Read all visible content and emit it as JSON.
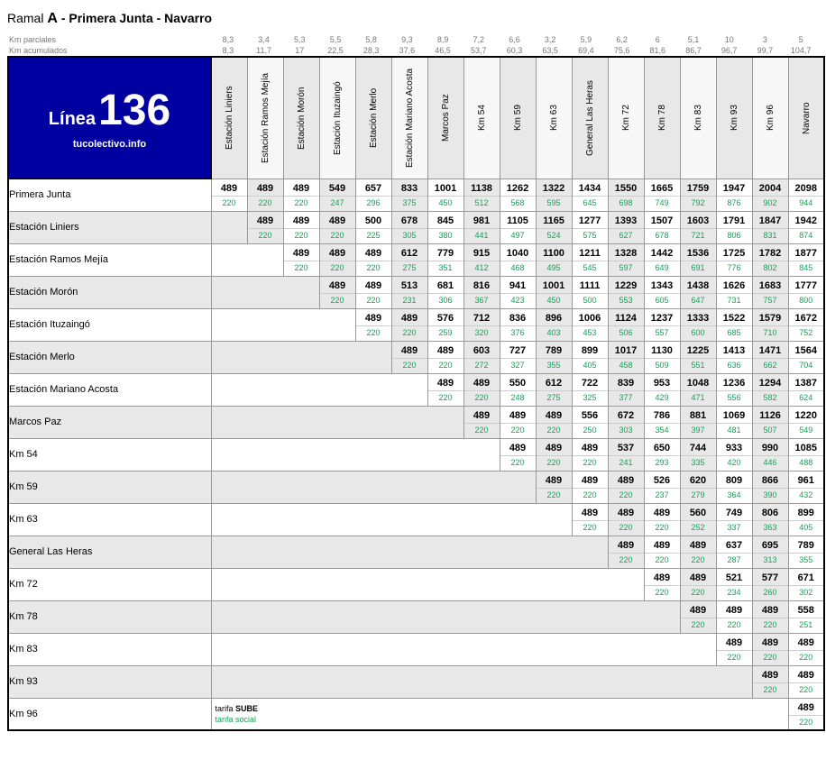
{
  "title": {
    "ramal": "Ramal",
    "letter": "A",
    "route": "- Primera Junta - Navarro"
  },
  "km_labels": {
    "parciales": "Km parciales",
    "acumulados": "Km acumulados"
  },
  "km_parciales": [
    "8,3",
    "3,4",
    "5,3",
    "5,5",
    "5,8",
    "9,3",
    "8,9",
    "7,2",
    "6,6",
    "3,2",
    "5,9",
    "6,2",
    "6",
    "5,1",
    "10",
    "3",
    "5"
  ],
  "km_acumulados": [
    "8,3",
    "11,7",
    "17",
    "22,5",
    "28,3",
    "37,6",
    "46,5",
    "53,7",
    "60,3",
    "63,5",
    "69,4",
    "75,6",
    "81,6",
    "86,7",
    "96,7",
    "99,7",
    "104,7"
  ],
  "linea": {
    "label": "Línea",
    "number": "136",
    "url": "tucolectivo.info"
  },
  "columns": [
    "Estación Liniers",
    "Estación Ramos Mejía",
    "Estación Morón",
    "Estación Ituzaingó",
    "Estación Merlo",
    "Estación Mariano Acosta",
    "Marcos Paz",
    "Km 54",
    "Km 59",
    "Km 63",
    "General Las Heras",
    "Km 72",
    "Km 78",
    "Km 83",
    "Km 93",
    "Km 96",
    "Navarro"
  ],
  "rows": [
    {
      "name": "Primera Junta",
      "start": 0,
      "sube": [
        "489",
        "489",
        "489",
        "549",
        "657",
        "833",
        "1001",
        "1138",
        "1262",
        "1322",
        "1434",
        "1550",
        "1665",
        "1759",
        "1947",
        "2004",
        "2098"
      ],
      "soc": [
        "220",
        "220",
        "220",
        "247",
        "296",
        "375",
        "450",
        "512",
        "568",
        "595",
        "645",
        "698",
        "749",
        "792",
        "876",
        "902",
        "944"
      ]
    },
    {
      "name": "Estación Liniers",
      "start": 1,
      "sube": [
        "489",
        "489",
        "489",
        "500",
        "678",
        "845",
        "981",
        "1105",
        "1165",
        "1277",
        "1393",
        "1507",
        "1603",
        "1791",
        "1847",
        "1942"
      ],
      "soc": [
        "220",
        "220",
        "220",
        "225",
        "305",
        "380",
        "441",
        "497",
        "524",
        "575",
        "627",
        "678",
        "721",
        "806",
        "831",
        "874"
      ]
    },
    {
      "name": "Estación Ramos Mejía",
      "start": 2,
      "sube": [
        "489",
        "489",
        "489",
        "612",
        "779",
        "915",
        "1040",
        "1100",
        "1211",
        "1328",
        "1442",
        "1536",
        "1725",
        "1782",
        "1877"
      ],
      "soc": [
        "220",
        "220",
        "220",
        "275",
        "351",
        "412",
        "468",
        "495",
        "545",
        "597",
        "649",
        "691",
        "776",
        "802",
        "845"
      ]
    },
    {
      "name": "Estación Morón",
      "start": 3,
      "sube": [
        "489",
        "489",
        "513",
        "681",
        "816",
        "941",
        "1001",
        "1111",
        "1229",
        "1343",
        "1438",
        "1626",
        "1683",
        "1777"
      ],
      "soc": [
        "220",
        "220",
        "231",
        "306",
        "367",
        "423",
        "450",
        "500",
        "553",
        "605",
        "647",
        "731",
        "757",
        "800"
      ]
    },
    {
      "name": "Estación Ituzaingó",
      "start": 4,
      "sube": [
        "489",
        "489",
        "576",
        "712",
        "836",
        "896",
        "1006",
        "1124",
        "1237",
        "1333",
        "1522",
        "1579",
        "1672"
      ],
      "soc": [
        "220",
        "220",
        "259",
        "320",
        "376",
        "403",
        "453",
        "506",
        "557",
        "600",
        "685",
        "710",
        "752"
      ]
    },
    {
      "name": "Estación Merlo",
      "start": 5,
      "sube": [
        "489",
        "489",
        "603",
        "727",
        "789",
        "899",
        "1017",
        "1130",
        "1225",
        "1413",
        "1471",
        "1564"
      ],
      "soc": [
        "220",
        "220",
        "272",
        "327",
        "355",
        "405",
        "458",
        "509",
        "551",
        "636",
        "662",
        "704"
      ]
    },
    {
      "name": "Estación Mariano Acosta",
      "start": 6,
      "sube": [
        "489",
        "489",
        "550",
        "612",
        "722",
        "839",
        "953",
        "1048",
        "1236",
        "1294",
        "1387"
      ],
      "soc": [
        "220",
        "220",
        "248",
        "275",
        "325",
        "377",
        "429",
        "471",
        "556",
        "582",
        "624"
      ]
    },
    {
      "name": "Marcos Paz",
      "start": 7,
      "sube": [
        "489",
        "489",
        "489",
        "556",
        "672",
        "786",
        "881",
        "1069",
        "1126",
        "1220"
      ],
      "soc": [
        "220",
        "220",
        "220",
        "250",
        "303",
        "354",
        "397",
        "481",
        "507",
        "549"
      ]
    },
    {
      "name": "Km 54",
      "start": 8,
      "sube": [
        "489",
        "489",
        "489",
        "537",
        "650",
        "744",
        "933",
        "990",
        "1085"
      ],
      "soc": [
        "220",
        "220",
        "220",
        "241",
        "293",
        "335",
        "420",
        "446",
        "488"
      ]
    },
    {
      "name": "Km 59",
      "start": 9,
      "sube": [
        "489",
        "489",
        "489",
        "526",
        "620",
        "809",
        "866",
        "961"
      ],
      "soc": [
        "220",
        "220",
        "220",
        "237",
        "279",
        "364",
        "390",
        "432"
      ]
    },
    {
      "name": "Km 63",
      "start": 10,
      "sube": [
        "489",
        "489",
        "489",
        "560",
        "749",
        "806",
        "899"
      ],
      "soc": [
        "220",
        "220",
        "220",
        "252",
        "337",
        "363",
        "405"
      ]
    },
    {
      "name": "General Las Heras",
      "start": 11,
      "sube": [
        "489",
        "489",
        "489",
        "637",
        "695",
        "789"
      ],
      "soc": [
        "220",
        "220",
        "220",
        "287",
        "313",
        "355"
      ]
    },
    {
      "name": "Km 72",
      "start": 12,
      "sube": [
        "489",
        "489",
        "521",
        "577",
        "671"
      ],
      "soc": [
        "220",
        "220",
        "234",
        "260",
        "302"
      ]
    },
    {
      "name": "Km 78",
      "start": 13,
      "sube": [
        "489",
        "489",
        "489",
        "558"
      ],
      "soc": [
        "220",
        "220",
        "220",
        "251"
      ]
    },
    {
      "name": "Km 83",
      "start": 14,
      "sube": [
        "489",
        "489",
        "489"
      ],
      "soc": [
        "220",
        "220",
        "220"
      ]
    },
    {
      "name": "Km 93",
      "start": 15,
      "sube": [
        "489",
        "489"
      ],
      "soc": [
        "220",
        "220"
      ]
    },
    {
      "name": "Km 96",
      "start": 16,
      "sube": [
        "489"
      ],
      "soc": [
        "220"
      ],
      "legend": true
    }
  ],
  "legend": {
    "sube": "tarifa SUBE",
    "social": "tarifa social"
  },
  "colors": {
    "linea_bg": "#0000a0",
    "alt_bg": "#e8e8e8",
    "social": "#1a9d5a"
  }
}
